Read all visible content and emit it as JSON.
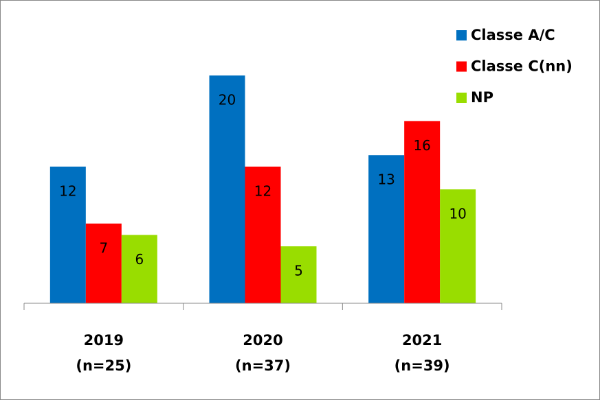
{
  "chart_data": {
    "type": "bar",
    "categories": [
      "2019",
      "2020",
      "2021"
    ],
    "category_sublabels": [
      "(n=25)",
      "(n=37)",
      "(n=39)"
    ],
    "series": [
      {
        "name": "Classe A/C",
        "color": "#0070c0",
        "values": [
          12,
          20,
          13
        ]
      },
      {
        "name": "Classe C(nn)",
        "color": "#ff0000",
        "values": [
          7,
          12,
          16
        ]
      },
      {
        "name": "NP",
        "color": "#99dd00",
        "values": [
          6,
          5,
          10
        ]
      }
    ],
    "ylim": [
      0,
      20
    ],
    "legend": "top-right"
  }
}
